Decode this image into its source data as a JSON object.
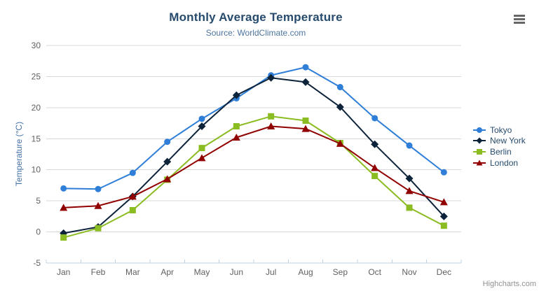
{
  "chart_data": {
    "type": "line",
    "title": "Monthly Average Temperature",
    "subtitle": "Source: WorldClimate.com",
    "xlabel": "",
    "ylabel": "Temperature (°C)",
    "categories": [
      "Jan",
      "Feb",
      "Mar",
      "Apr",
      "May",
      "Jun",
      "Jul",
      "Aug",
      "Sep",
      "Oct",
      "Nov",
      "Dec"
    ],
    "ylim": [
      -5,
      30
    ],
    "y_ticks": [
      -5,
      0,
      5,
      10,
      15,
      20,
      25,
      30
    ],
    "grid": true,
    "legend_position": "right",
    "series": [
      {
        "name": "Tokyo",
        "color": "#2f7ed8",
        "marker": "circle",
        "values": [
          7.0,
          6.9,
          9.5,
          14.5,
          18.2,
          21.5,
          25.2,
          26.5,
          23.3,
          18.3,
          13.9,
          9.6
        ]
      },
      {
        "name": "New York",
        "color": "#0d233a",
        "marker": "diamond",
        "values": [
          -0.2,
          0.8,
          5.7,
          11.3,
          17.0,
          22.0,
          24.8,
          24.1,
          20.1,
          14.1,
          8.6,
          2.5
        ]
      },
      {
        "name": "Berlin",
        "color": "#8bbc21",
        "marker": "square",
        "values": [
          -0.9,
          0.6,
          3.5,
          8.4,
          13.5,
          17.0,
          18.6,
          17.9,
          14.3,
          9.0,
          3.9,
          1.0
        ]
      },
      {
        "name": "London",
        "color": "#910000",
        "marker": "triangle",
        "values": [
          3.9,
          4.2,
          5.7,
          8.5,
          11.9,
          15.2,
          17.0,
          16.6,
          14.2,
          10.3,
          6.6,
          4.8
        ]
      }
    ],
    "credit": "Highcharts.com",
    "colors": {
      "title": "#274b6d",
      "subtitle": "#4d759e",
      "axis_title": "#4572a7",
      "tick_label": "#606060",
      "grid": "#d8d8d8",
      "axis_line": "#c0d0e0",
      "legend_label": "#274b6d",
      "credit": "#909090",
      "menu_icon": "#666666"
    }
  },
  "icons": {
    "export_menu": "hamburger-menu-icon"
  }
}
